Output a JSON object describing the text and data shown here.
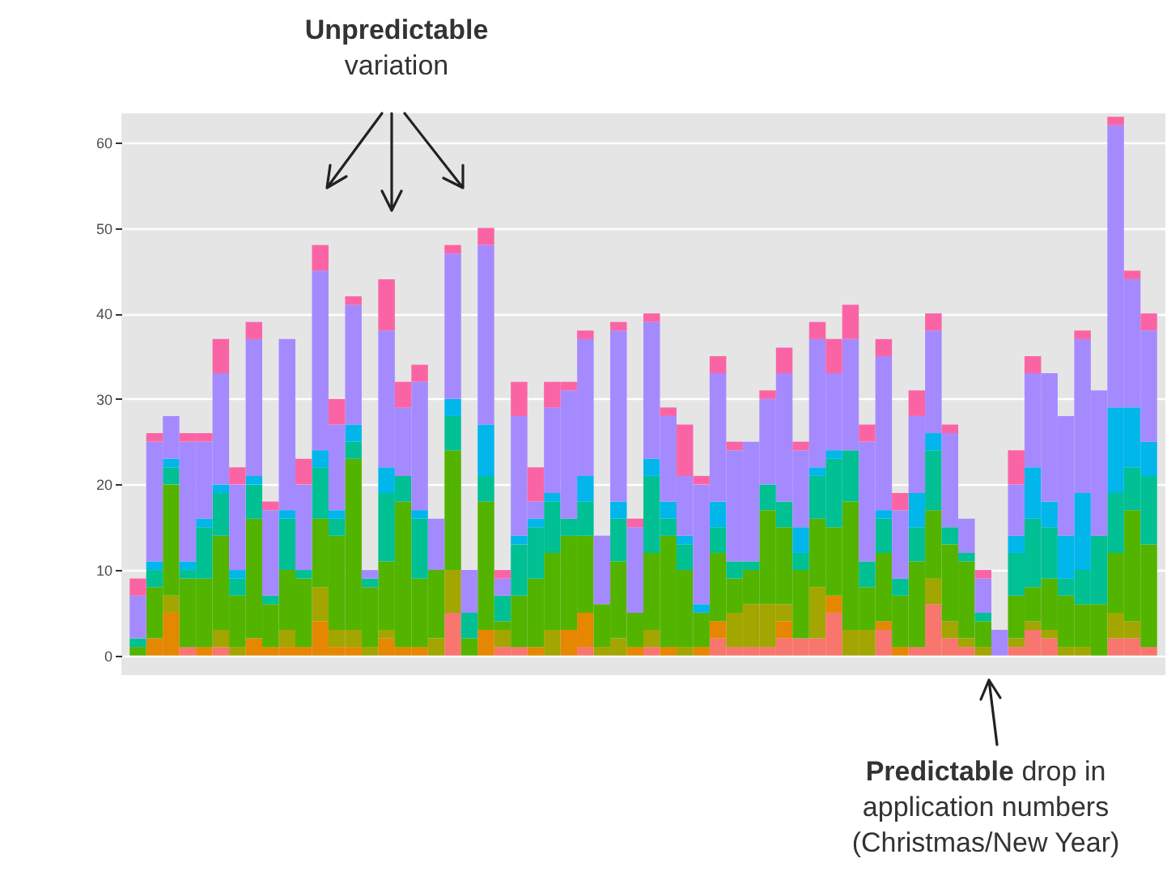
{
  "chart_data": {
    "type": "bar",
    "stacked": true,
    "categories": [
      null,
      null,
      null,
      null,
      null,
      null,
      null,
      null,
      null,
      null,
      null,
      null,
      null,
      null,
      null,
      null,
      null,
      null,
      null,
      null,
      null,
      null,
      null,
      null,
      null,
      null,
      null,
      null,
      null,
      null,
      null,
      null,
      null,
      null,
      null,
      null,
      null,
      null,
      null,
      null,
      null,
      null,
      null,
      null,
      null,
      null,
      null,
      null,
      null,
      null,
      null,
      null,
      null,
      null,
      null,
      null,
      null,
      null,
      null,
      null,
      null,
      null
    ],
    "series": [
      {
        "color": "#f8766d",
        "values": [
          0,
          0,
          0,
          1,
          0,
          1,
          0,
          0,
          0,
          0,
          0,
          0,
          0,
          0,
          0,
          0,
          0,
          0,
          0,
          5,
          0,
          0,
          1,
          1,
          0,
          0,
          0,
          1,
          0,
          0,
          0,
          1,
          0,
          0,
          0,
          2,
          1,
          1,
          1,
          2,
          2,
          2,
          5,
          0,
          0,
          3,
          0,
          1,
          6,
          2,
          1,
          0,
          0,
          1,
          3,
          2,
          0,
          0,
          0,
          2,
          2,
          1
        ]
      },
      {
        "color": "#e58700",
        "values": [
          0,
          2,
          5,
          0,
          1,
          0,
          0,
          2,
          1,
          1,
          1,
          4,
          1,
          1,
          0,
          2,
          1,
          1,
          0,
          0,
          0,
          3,
          0,
          0,
          1,
          0,
          3,
          4,
          0,
          0,
          1,
          0,
          1,
          0,
          1,
          2,
          0,
          0,
          0,
          2,
          0,
          0,
          2,
          0,
          0,
          1,
          1,
          0,
          0,
          0,
          0,
          0,
          0,
          0,
          0,
          0,
          0,
          0,
          0,
          0,
          0,
          0
        ]
      },
      {
        "color": "#a3a500",
        "values": [
          0,
          0,
          2,
          0,
          0,
          2,
          1,
          0,
          0,
          2,
          0,
          4,
          2,
          2,
          1,
          1,
          0,
          0,
          2,
          5,
          0,
          0,
          2,
          0,
          0,
          3,
          0,
          0,
          1,
          2,
          0,
          2,
          0,
          1,
          0,
          0,
          4,
          5,
          5,
          2,
          0,
          6,
          0,
          3,
          3,
          0,
          0,
          0,
          3,
          2,
          1,
          1,
          0,
          1,
          1,
          1,
          1,
          1,
          0,
          3,
          2,
          0
        ]
      },
      {
        "color": "#53b400",
        "values": [
          1,
          6,
          13,
          8,
          8,
          11,
          6,
          14,
          5,
          7,
          8,
          8,
          11,
          20,
          7,
          8,
          17,
          8,
          8,
          14,
          2,
          15,
          1,
          6,
          8,
          9,
          11,
          9,
          5,
          9,
          4,
          9,
          13,
          9,
          4,
          8,
          4,
          4,
          11,
          9,
          8,
          8,
          8,
          15,
          5,
          8,
          6,
          10,
          8,
          9,
          9,
          3,
          0,
          5,
          4,
          6,
          6,
          5,
          6,
          7,
          13,
          12
        ]
      },
      {
        "color": "#00c094",
        "values": [
          1,
          2,
          2,
          1,
          6,
          5,
          2,
          4,
          1,
          6,
          1,
          6,
          2,
          2,
          1,
          8,
          3,
          7,
          0,
          4,
          3,
          3,
          3,
          6,
          6,
          6,
          2,
          4,
          0,
          5,
          0,
          9,
          2,
          3,
          0,
          3,
          2,
          1,
          3,
          3,
          2,
          5,
          8,
          6,
          3,
          4,
          2,
          4,
          7,
          2,
          1,
          1,
          0,
          5,
          8,
          6,
          2,
          4,
          8,
          7,
          5,
          8
        ]
      },
      {
        "color": "#00b6eb",
        "values": [
          0,
          1,
          1,
          1,
          1,
          1,
          1,
          1,
          0,
          1,
          0,
          2,
          1,
          2,
          0,
          3,
          0,
          1,
          0,
          2,
          0,
          6,
          0,
          1,
          1,
          1,
          0,
          3,
          0,
          2,
          0,
          2,
          2,
          1,
          1,
          3,
          0,
          0,
          0,
          0,
          3,
          1,
          1,
          0,
          0,
          1,
          0,
          4,
          2,
          0,
          0,
          0,
          0,
          2,
          6,
          3,
          5,
          9,
          0,
          10,
          7,
          4
        ]
      },
      {
        "color": "#a58aff",
        "values": [
          5,
          14,
          5,
          14,
          9,
          13,
          10,
          16,
          10,
          20,
          10,
          21,
          10,
          14,
          1,
          16,
          8,
          15,
          6,
          17,
          5,
          21,
          2,
          14,
          2,
          10,
          15,
          16,
          8,
          20,
          10,
          16,
          10,
          7,
          14,
          15,
          13,
          14,
          10,
          15,
          9,
          15,
          9,
          13,
          14,
          18,
          8,
          9,
          12,
          11,
          4,
          4,
          3,
          6,
          11,
          15,
          14,
          18,
          17,
          33,
          15,
          13
        ]
      },
      {
        "color": "#fb64a4",
        "values": [
          2,
          1,
          0,
          1,
          1,
          4,
          2,
          2,
          1,
          0,
          3,
          3,
          3,
          1,
          0,
          6,
          3,
          2,
          0,
          1,
          0,
          2,
          1,
          4,
          4,
          3,
          1,
          1,
          0,
          1,
          1,
          1,
          1,
          6,
          1,
          2,
          1,
          0,
          1,
          3,
          1,
          2,
          4,
          4,
          2,
          2,
          2,
          3,
          2,
          1,
          0,
          1,
          0,
          4,
          2,
          0,
          0,
          1,
          0,
          1,
          1,
          2
        ]
      }
    ],
    "ylim": [
      -2.3,
      63.4
    ],
    "yticks": [
      0,
      10,
      20,
      30,
      40,
      50,
      60
    ],
    "grid": "y",
    "tick_labels": "y",
    "annotations": [
      "Unpredictable variation",
      "Predictable drop in application numbers (Christmas/New Year)"
    ]
  }
}
